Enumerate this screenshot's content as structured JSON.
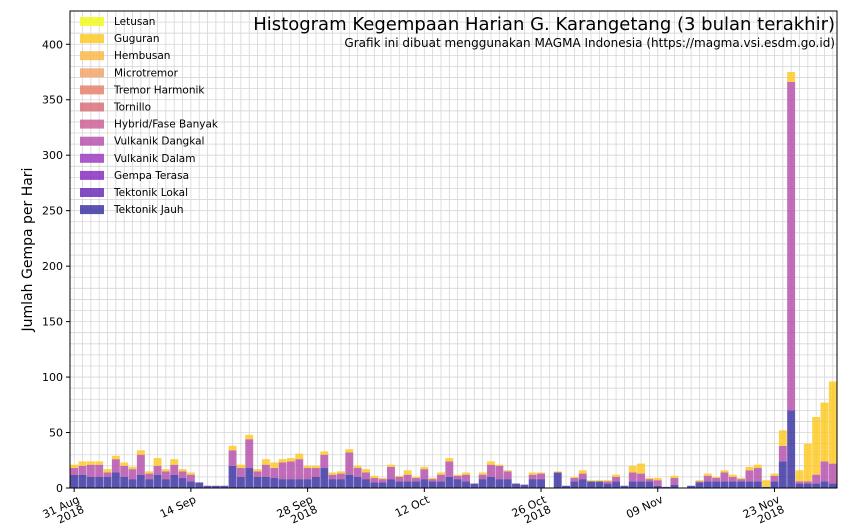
{
  "chart_data": {
    "type": "bar",
    "stacked": true,
    "title": "Histogram Kegempaan Harian G. Karangetang (3 bulan terakhir)",
    "subtitle": "Grafik ini dibuat menggunakan MAGMA Indonesia (https://magma.vsi.esdm.go.id)",
    "xlabel": "",
    "ylabel": "Jumlah Gempa per Hari",
    "ylim": [
      0,
      430
    ],
    "yticks": [
      0,
      50,
      100,
      150,
      200,
      250,
      300,
      350,
      400
    ],
    "grid": true,
    "legend_position": "top-left",
    "x_start": "2018-08-31",
    "x_end": "2018-11-30",
    "xticks": [
      {
        "date": "2018-08-31",
        "label": [
          "31 Aug",
          "2018"
        ]
      },
      {
        "date": "2018-09-14",
        "label": [
          "14 Sep"
        ]
      },
      {
        "date": "2018-09-28",
        "label": [
          "28 Sep",
          "2018"
        ]
      },
      {
        "date": "2018-10-12",
        "label": [
          "12 Oct"
        ]
      },
      {
        "date": "2018-10-26",
        "label": [
          "26 Oct",
          "2018"
        ]
      },
      {
        "date": "2018-11-09",
        "label": [
          "09 Nov"
        ]
      },
      {
        "date": "2018-11-23",
        "label": [
          "23 Nov",
          "2018"
        ]
      }
    ],
    "series": [
      {
        "name": "Letusan",
        "color": "#f0f921"
      },
      {
        "name": "Guguran",
        "color": "#fdca26"
      },
      {
        "name": "Hembusan",
        "color": "#fbb84a"
      },
      {
        "name": "Microtremor",
        "color": "#f3a46b"
      },
      {
        "name": "Tremor Harmonik",
        "color": "#e5826d"
      },
      {
        "name": "Tornillo",
        "color": "#d8717a"
      },
      {
        "name": "Hybrid/Fase Banyak",
        "color": "#cc6097"
      },
      {
        "name": "Vulkanik Dangkal",
        "color": "#b654ad"
      },
      {
        "name": "Vulkanik Dalam",
        "color": "#9e3dbf"
      },
      {
        "name": "Gempa Terasa",
        "color": "#8a2fc0"
      },
      {
        "name": "Tektonik Lokal",
        "color": "#6a2eb8"
      },
      {
        "name": "Tektonik Jauh",
        "color": "#3e36a3"
      }
    ],
    "daily": [
      {
        "date": "2018-08-31",
        "t": 12,
        "v": 6,
        "g": 3
      },
      {
        "date": "2018-09-01",
        "t": 12,
        "v": 8,
        "g": 4
      },
      {
        "date": "2018-09-02",
        "t": 10,
        "v": 11,
        "g": 3
      },
      {
        "date": "2018-09-03",
        "t": 10,
        "v": 11,
        "g": 3
      },
      {
        "date": "2018-09-04",
        "t": 10,
        "v": 4,
        "g": 3
      },
      {
        "date": "2018-09-05",
        "t": 14,
        "v": 12,
        "g": 3
      },
      {
        "date": "2018-09-06",
        "t": 10,
        "v": 10,
        "g": 3
      },
      {
        "date": "2018-09-07",
        "t": 8,
        "v": 9,
        "g": 2
      },
      {
        "date": "2018-09-08",
        "t": 12,
        "v": 18,
        "g": 4
      },
      {
        "date": "2018-09-09",
        "t": 8,
        "v": 5,
        "g": 2
      },
      {
        "date": "2018-09-10",
        "t": 12,
        "v": 8,
        "g": 7
      },
      {
        "date": "2018-09-11",
        "t": 8,
        "v": 7,
        "g": 2
      },
      {
        "date": "2018-09-12",
        "t": 12,
        "v": 9,
        "g": 5
      },
      {
        "date": "2018-09-13",
        "t": 9,
        "v": 6,
        "g": 2
      },
      {
        "date": "2018-09-14",
        "t": 6,
        "v": 6,
        "g": 2
      },
      {
        "date": "2018-09-15",
        "t": 5,
        "v": 0,
        "g": 0
      },
      {
        "date": "2018-09-16",
        "t": 2,
        "v": 0,
        "g": 0
      },
      {
        "date": "2018-09-17",
        "t": 2,
        "v": 0,
        "g": 0
      },
      {
        "date": "2018-09-18",
        "t": 2,
        "v": 0,
        "g": 0
      },
      {
        "date": "2018-09-19",
        "t": 20,
        "v": 14,
        "g": 4
      },
      {
        "date": "2018-09-20",
        "t": 10,
        "v": 8,
        "g": 3
      },
      {
        "date": "2018-09-21",
        "t": 18,
        "v": 26,
        "g": 4
      },
      {
        "date": "2018-09-22",
        "t": 10,
        "v": 5,
        "g": 2
      },
      {
        "date": "2018-09-23",
        "t": 10,
        "v": 11,
        "g": 5
      },
      {
        "date": "2018-09-24",
        "t": 9,
        "v": 9,
        "g": 5
      },
      {
        "date": "2018-09-25",
        "t": 8,
        "v": 15,
        "g": 3
      },
      {
        "date": "2018-09-26",
        "t": 8,
        "v": 16,
        "g": 3
      },
      {
        "date": "2018-09-27",
        "t": 8,
        "v": 18,
        "g": 5
      },
      {
        "date": "2018-09-28",
        "t": 8,
        "v": 10,
        "g": 2
      },
      {
        "date": "2018-09-29",
        "t": 10,
        "v": 8,
        "g": 2
      },
      {
        "date": "2018-09-30",
        "t": 18,
        "v": 12,
        "g": 3
      },
      {
        "date": "2018-10-01",
        "t": 8,
        "v": 4,
        "g": 2
      },
      {
        "date": "2018-10-02",
        "t": 8,
        "v": 5,
        "g": 2
      },
      {
        "date": "2018-10-03",
        "t": 12,
        "v": 20,
        "g": 3
      },
      {
        "date": "2018-10-04",
        "t": 10,
        "v": 8,
        "g": 2
      },
      {
        "date": "2018-10-05",
        "t": 8,
        "v": 6,
        "g": 3
      },
      {
        "date": "2018-10-06",
        "t": 5,
        "v": 4,
        "g": 2
      },
      {
        "date": "2018-10-07",
        "t": 5,
        "v": 3,
        "g": 1
      },
      {
        "date": "2018-10-08",
        "t": 8,
        "v": 11,
        "g": 2
      },
      {
        "date": "2018-10-09",
        "t": 6,
        "v": 4,
        "g": 1
      },
      {
        "date": "2018-10-10",
        "t": 6,
        "v": 6,
        "g": 4
      },
      {
        "date": "2018-10-11",
        "t": 6,
        "v": 3,
        "g": 1
      },
      {
        "date": "2018-10-12",
        "t": 8,
        "v": 9,
        "g": 2
      },
      {
        "date": "2018-10-13",
        "t": 6,
        "v": 2,
        "g": 1
      },
      {
        "date": "2018-10-14",
        "t": 6,
        "v": 6,
        "g": 2
      },
      {
        "date": "2018-10-15",
        "t": 10,
        "v": 14,
        "g": 3
      },
      {
        "date": "2018-10-16",
        "t": 8,
        "v": 3,
        "g": 1
      },
      {
        "date": "2018-10-17",
        "t": 6,
        "v": 6,
        "g": 2
      },
      {
        "date": "2018-10-18",
        "t": 4,
        "v": 0,
        "g": 0
      },
      {
        "date": "2018-10-19",
        "t": 8,
        "v": 4,
        "g": 2
      },
      {
        "date": "2018-10-20",
        "t": 10,
        "v": 11,
        "g": 3
      },
      {
        "date": "2018-10-21",
        "t": 8,
        "v": 12,
        "g": 1
      },
      {
        "date": "2018-10-22",
        "t": 8,
        "v": 7,
        "g": 1
      },
      {
        "date": "2018-10-23",
        "t": 4,
        "v": 0,
        "g": 0
      },
      {
        "date": "2018-10-24",
        "t": 3,
        "v": 0,
        "g": 0
      },
      {
        "date": "2018-10-25",
        "t": 8,
        "v": 4,
        "g": 2
      },
      {
        "date": "2018-10-26",
        "t": 8,
        "v": 5,
        "g": 1
      },
      {
        "date": "2018-10-27",
        "t": 0,
        "v": 0,
        "g": 0
      },
      {
        "date": "2018-10-28",
        "t": 14,
        "v": 0,
        "g": 1
      },
      {
        "date": "2018-10-29",
        "t": 2,
        "v": 0,
        "g": 0
      },
      {
        "date": "2018-10-30",
        "t": 6,
        "v": 3,
        "g": 1
      },
      {
        "date": "2018-10-31",
        "t": 8,
        "v": 5,
        "g": 3
      },
      {
        "date": "2018-11-01",
        "t": 6,
        "v": 0,
        "g": 1
      },
      {
        "date": "2018-11-02",
        "t": 6,
        "v": 0,
        "g": 1
      },
      {
        "date": "2018-11-03",
        "t": 4,
        "v": 2,
        "g": 1
      },
      {
        "date": "2018-11-04",
        "t": 6,
        "v": 4,
        "g": 2
      },
      {
        "date": "2018-11-05",
        "t": 2,
        "v": 0,
        "g": 0
      },
      {
        "date": "2018-11-06",
        "t": 6,
        "v": 8,
        "g": 6
      },
      {
        "date": "2018-11-07",
        "t": 6,
        "v": 7,
        "g": 9
      },
      {
        "date": "2018-11-08",
        "t": 6,
        "v": 2,
        "g": 1
      },
      {
        "date": "2018-11-09",
        "t": 2,
        "v": 5,
        "g": 2
      },
      {
        "date": "2018-11-10",
        "t": 1,
        "v": 0,
        "g": 0
      },
      {
        "date": "2018-11-11",
        "t": 3,
        "v": 6,
        "g": 2
      },
      {
        "date": "2018-11-12",
        "t": 0,
        "v": 0,
        "g": 0
      },
      {
        "date": "2018-11-13",
        "t": 2,
        "v": 0,
        "g": 0
      },
      {
        "date": "2018-11-14",
        "t": 5,
        "v": 1,
        "g": 1
      },
      {
        "date": "2018-11-15",
        "t": 6,
        "v": 5,
        "g": 2
      },
      {
        "date": "2018-11-16",
        "t": 6,
        "v": 3,
        "g": 1
      },
      {
        "date": "2018-11-17",
        "t": 6,
        "v": 8,
        "g": 2
      },
      {
        "date": "2018-11-18",
        "t": 6,
        "v": 4,
        "g": 2
      },
      {
        "date": "2018-11-19",
        "t": 6,
        "v": 2,
        "g": 1
      },
      {
        "date": "2018-11-20",
        "t": 6,
        "v": 10,
        "g": 3
      },
      {
        "date": "2018-11-21",
        "t": 6,
        "v": 12,
        "g": 3
      },
      {
        "date": "2018-11-22",
        "t": 1,
        "v": 0,
        "g": 6
      },
      {
        "date": "2018-11-23",
        "t": 6,
        "v": 5,
        "g": 2
      },
      {
        "date": "2018-11-24",
        "t": 24,
        "v": 14,
        "g": 14
      },
      {
        "date": "2018-11-25",
        "t": 70,
        "v": 296,
        "g": 9
      },
      {
        "date": "2018-11-26",
        "t": 4,
        "v": 2,
        "g": 10
      },
      {
        "date": "2018-11-27",
        "t": 4,
        "v": 2,
        "g": 34
      },
      {
        "date": "2018-11-28",
        "t": 4,
        "v": 8,
        "g": 52
      },
      {
        "date": "2018-11-29",
        "t": 6,
        "v": 18,
        "g": 53
      },
      {
        "date": "2018-11-30",
        "t": 4,
        "v": 18,
        "g": 74
      }
    ]
  }
}
